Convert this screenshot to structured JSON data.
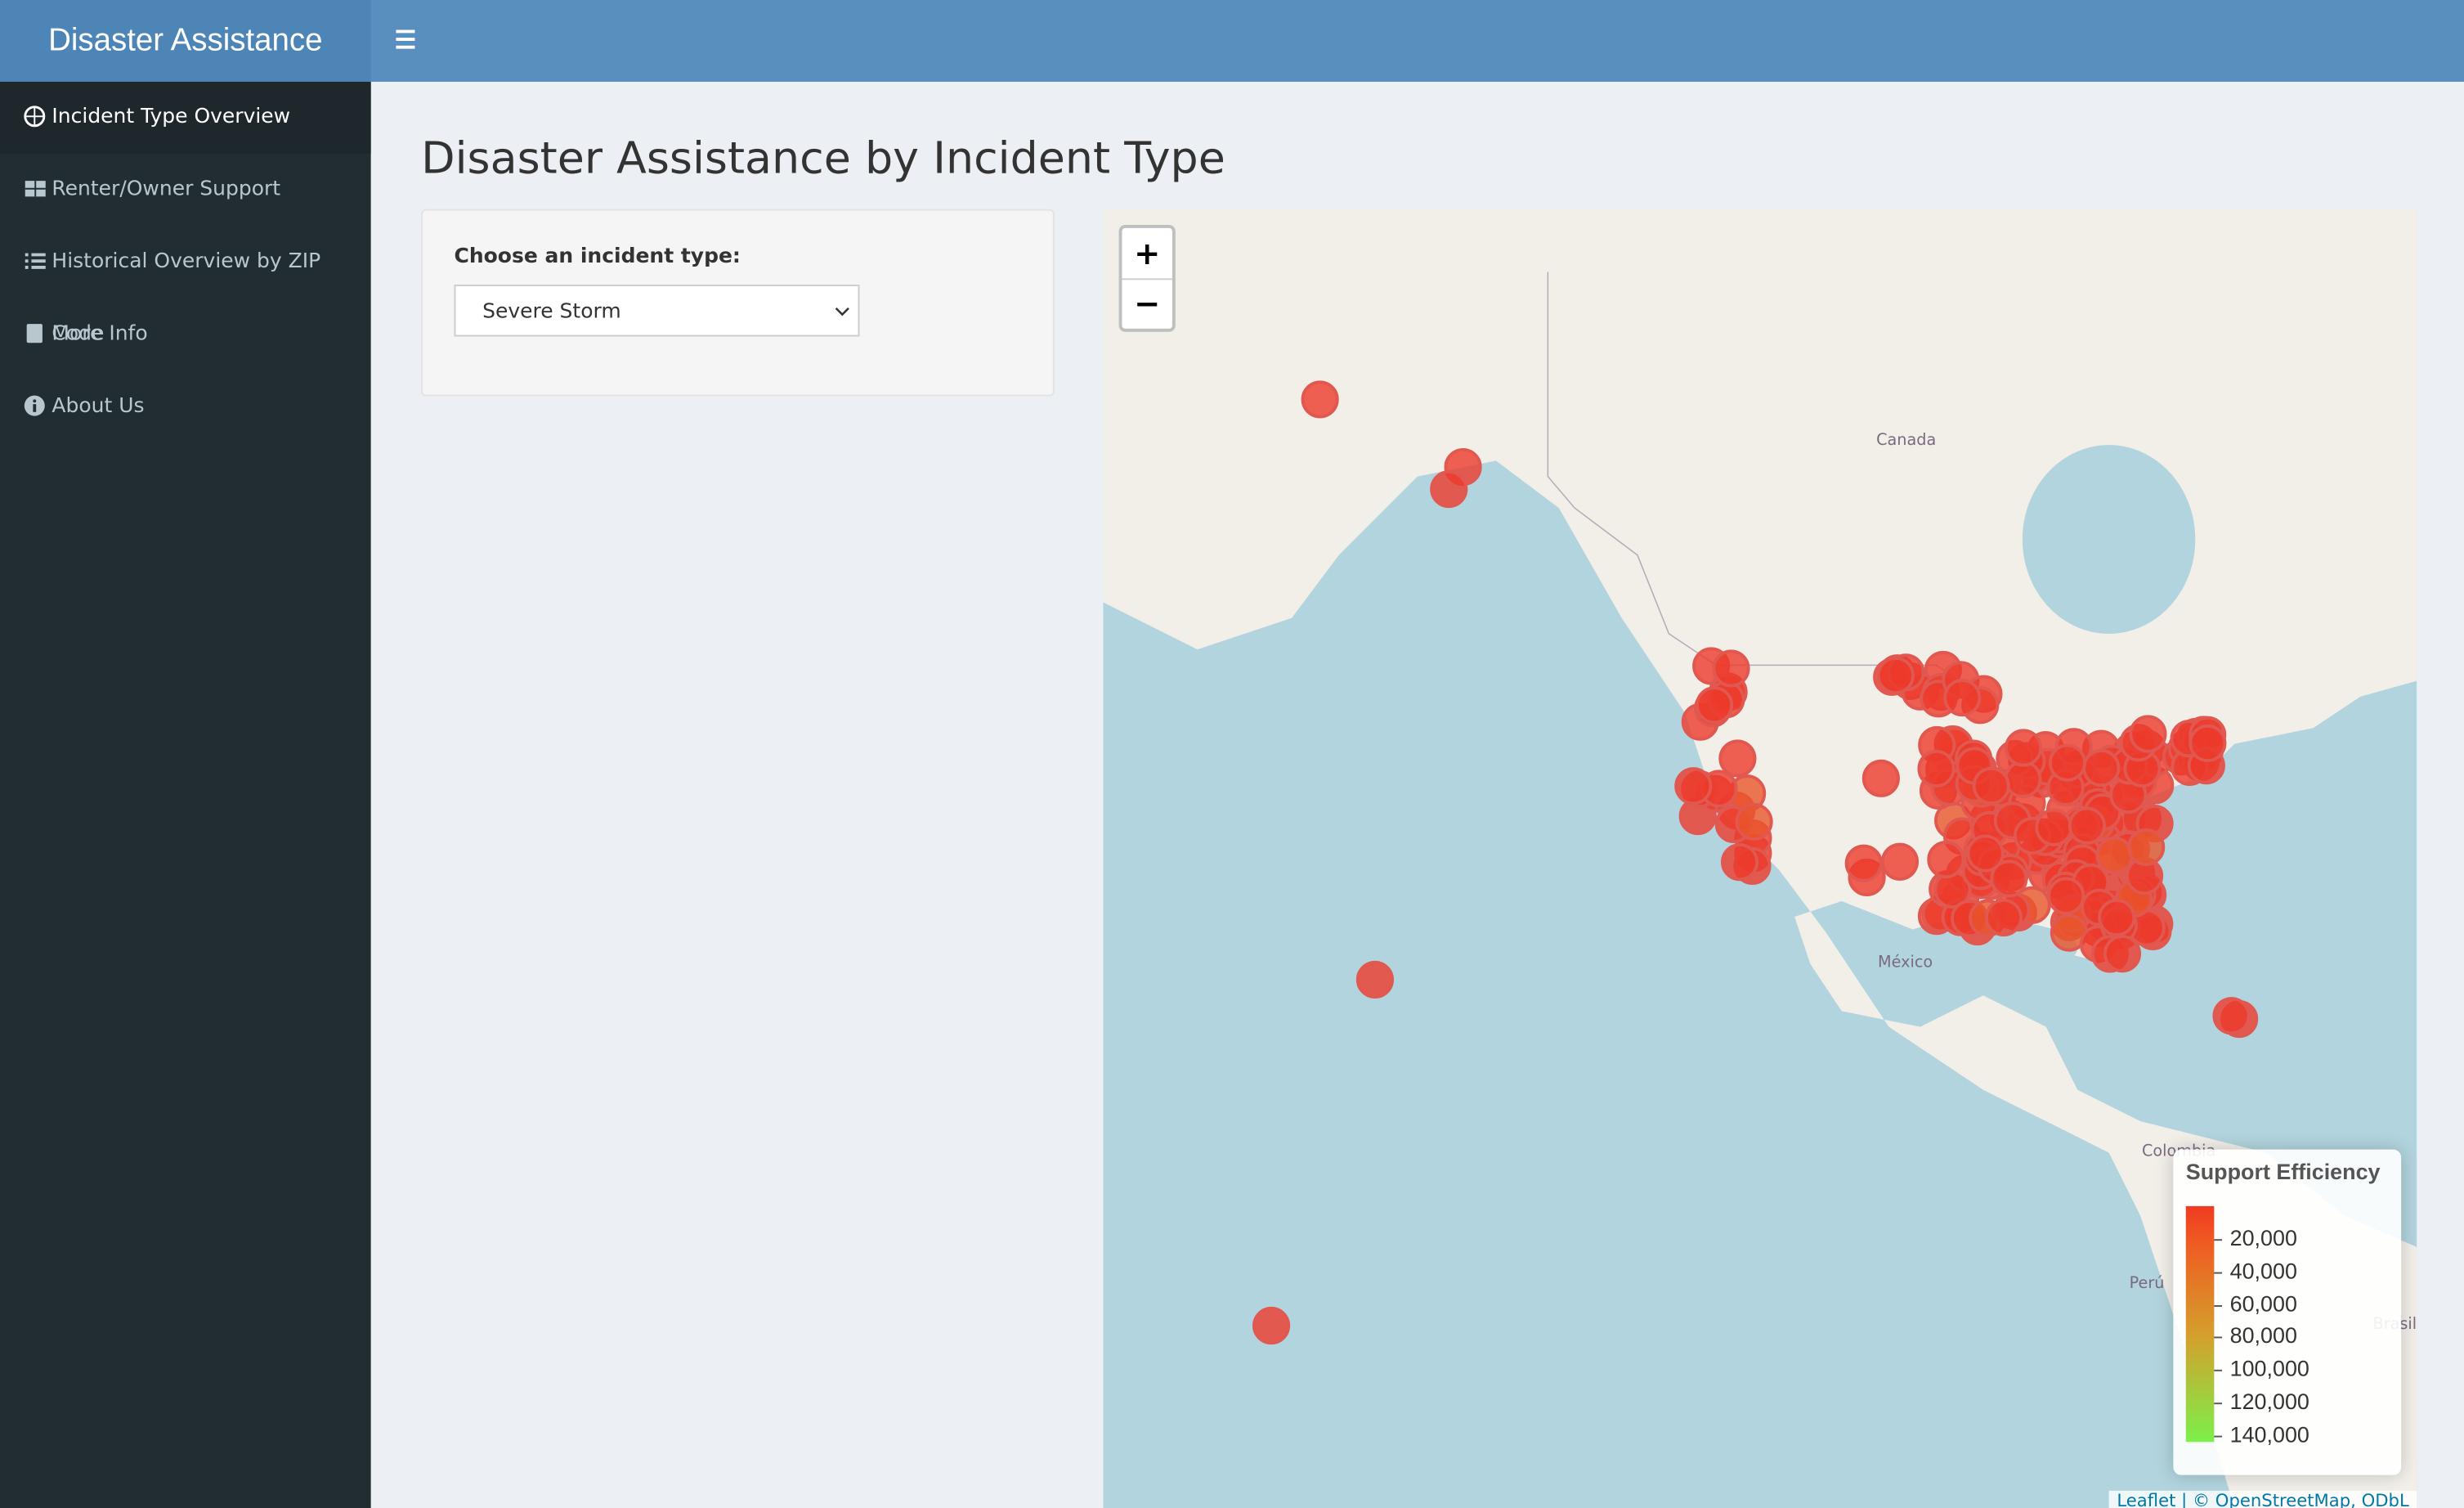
{
  "header": {
    "brand": "Disaster Assistance"
  },
  "sidebar": {
    "items": [
      "Incident Type Overview",
      "Renter/Owner Support",
      "Historical Overview by ZIP Code",
      "More Info",
      "About Us"
    ]
  },
  "main": {
    "title": "Disaster Assistance by Incident Type",
    "select_label": "Choose an incident type:",
    "selected": "Severe Storm"
  },
  "map": {
    "zoom_in": "+",
    "zoom_out": "−",
    "place_labels": [
      "Canada",
      "México",
      "Colombia",
      "Perú",
      "Brasil"
    ],
    "legend": {
      "title": "Support Efficiency",
      "ticks": [
        "20,000",
        "40,000",
        "60,000",
        "80,000",
        "100,000",
        "120,000",
        "140,000"
      ]
    },
    "attribution": "Leaflet | © OpenStreetMap, ODbL"
  }
}
